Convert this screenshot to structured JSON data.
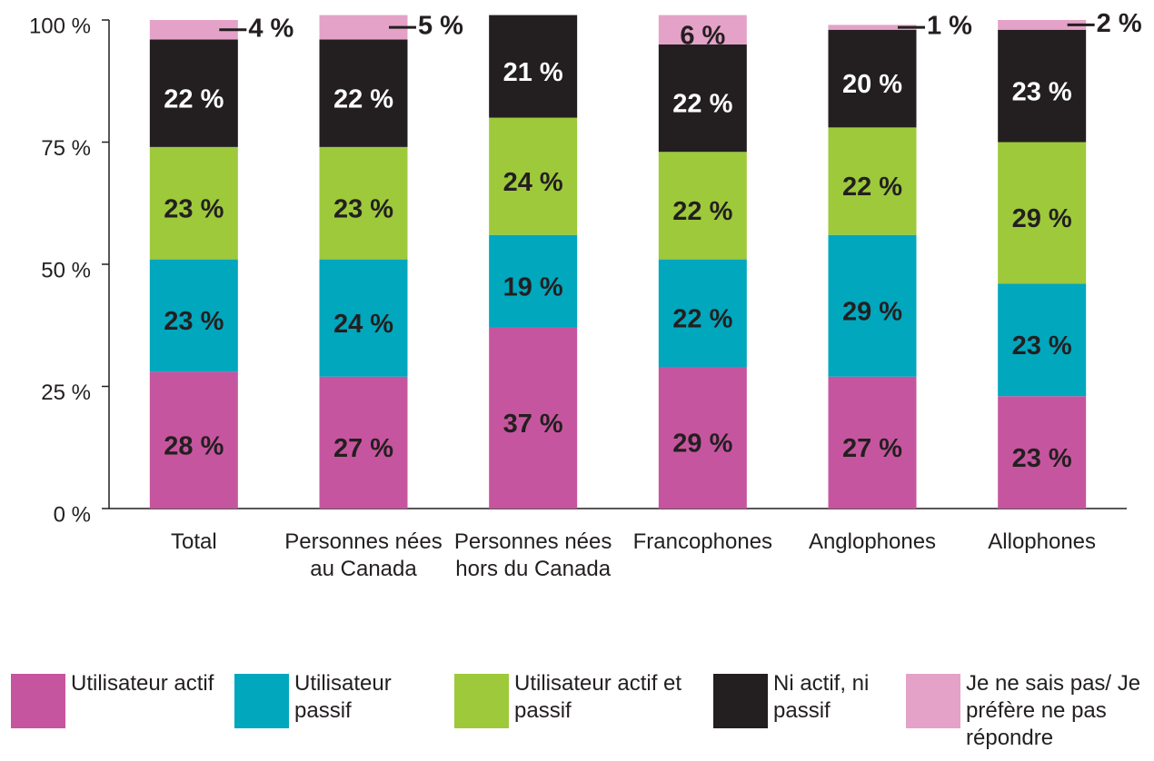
{
  "chart_data": {
    "type": "stacked_bar",
    "categories": [
      "Total",
      "Personnes nées au Canada",
      "Personnes nées hors du Canada",
      "Francophones",
      "Anglophones",
      "Allophones"
    ],
    "series": [
      {
        "name": "Utilisateur actif",
        "color": "#c6559f",
        "values": [
          28,
          27,
          37,
          29,
          27,
          23
        ],
        "value_labels": [
          "28 %",
          "27 %",
          "37 %",
          "29 %",
          "27 %",
          "23 %"
        ]
      },
      {
        "name": "Utilisateur passif",
        "color": "#00a7bd",
        "values": [
          23,
          24,
          19,
          22,
          29,
          23
        ],
        "value_labels": [
          "23 %",
          "24 %",
          "19 %",
          "22 %",
          "29 %",
          "23 %"
        ]
      },
      {
        "name": "Utilisateur actif et passif",
        "color": "#9dc93b",
        "values": [
          23,
          23,
          24,
          22,
          22,
          29
        ],
        "value_labels": [
          "23 %",
          "23 %",
          "24 %",
          "22 %",
          "22 %",
          "29 %"
        ]
      },
      {
        "name": "Ni actif, ni passif",
        "color": "#231f20",
        "values": [
          22,
          22,
          21,
          22,
          20,
          23
        ],
        "value_labels": [
          "22 %",
          "22 %",
          "21 %",
          "22 %",
          "20 %",
          "23 %"
        ]
      },
      {
        "name": "Je ne sais pas/ Je préfère ne pas répondre",
        "color": "#e4a2c8",
        "values": [
          4,
          5,
          null,
          6,
          1,
          2
        ],
        "value_labels": [
          "4 %",
          "5 %",
          null,
          "6 %",
          "1 %",
          "2 %"
        ]
      }
    ],
    "ylim": [
      0,
      100
    ],
    "yticks": [
      {
        "value": 0,
        "label": "0 %"
      },
      {
        "value": 25,
        "label": "25 %"
      },
      {
        "value": 50,
        "label": "50 %"
      },
      {
        "value": 75,
        "label": "75 %"
      },
      {
        "value": 100,
        "label": "100 %"
      }
    ],
    "grid": false
  }
}
